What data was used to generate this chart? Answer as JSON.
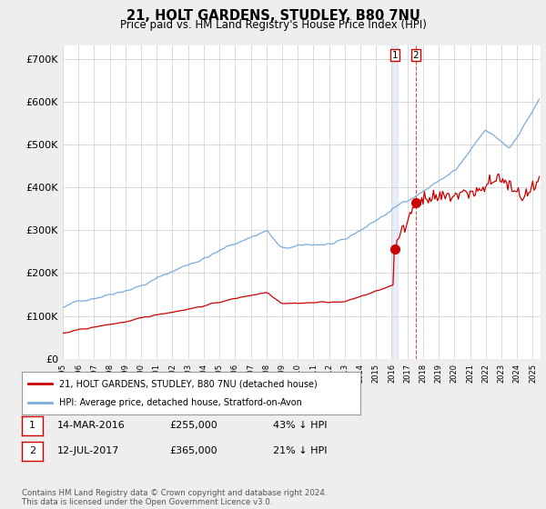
{
  "title": "21, HOLT GARDENS, STUDLEY, B80 7NU",
  "subtitle": "Price paid vs. HM Land Registry's House Price Index (HPI)",
  "hpi_color": "#7aabdb",
  "property_color": "#cc0000",
  "vline1_color": "#aabbdd",
  "vline2_color": "#cc0000",
  "background_color": "#eeeeee",
  "plot_bg_color": "#ffffff",
  "grid_color": "#cccccc",
  "legend_label_property": "21, HOLT GARDENS, STUDLEY, B80 7NU (detached house)",
  "legend_label_hpi": "HPI: Average price, detached house, Stratford-on-Avon",
  "sale1_date": "14-MAR-2016",
  "sale1_price": 255000,
  "sale1_label": "43% ↓ HPI",
  "sale2_date": "12-JUL-2017",
  "sale2_price": 365000,
  "sale2_label": "21% ↓ HPI",
  "sale1_year": 2016.2,
  "sale2_year": 2017.54,
  "footer": "Contains HM Land Registry data © Crown copyright and database right 2024.\nThis data is licensed under the Open Government Licence v3.0.",
  "ylim": [
    0,
    730000
  ],
  "yticks": [
    0,
    100000,
    200000,
    300000,
    400000,
    500000,
    600000,
    700000
  ],
  "ytick_labels": [
    "£0",
    "£100K",
    "£200K",
    "£300K",
    "£400K",
    "£500K",
    "£600K",
    "£700K"
  ]
}
